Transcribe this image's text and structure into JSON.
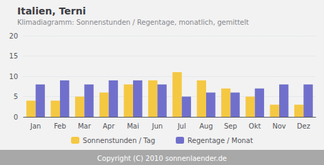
{
  "chart_data": {
    "type": "bar",
    "title": "Italien, Terni",
    "subtitle": "Klimadiagramm: Sonnenstunden / Regentage, monatlich, gemittelt",
    "categories": [
      "Jan",
      "Feb",
      "Mar",
      "Apr",
      "Mai",
      "Jun",
      "Jul",
      "Aug",
      "Sep",
      "Okt",
      "Nov",
      "Dez"
    ],
    "series": [
      {
        "name": "Sonnenstunden / Tag",
        "color": "#F5C842",
        "values": [
          4,
          4,
          5,
          6,
          8,
          9,
          11,
          9,
          7,
          5,
          3,
          3
        ]
      },
      {
        "name": "Regentage / Monat",
        "color": "#7070CC",
        "values": [
          8,
          9,
          8,
          9,
          9,
          8,
          5,
          6,
          6,
          7,
          8,
          8
        ]
      }
    ],
    "ylim": [
      0,
      20
    ],
    "yticks": [
      0,
      5,
      10,
      15,
      20
    ],
    "grid": true,
    "legend": "bottom",
    "annotations": [
      "Copyright (C) 2010 sonnenlaender.de"
    ]
  }
}
